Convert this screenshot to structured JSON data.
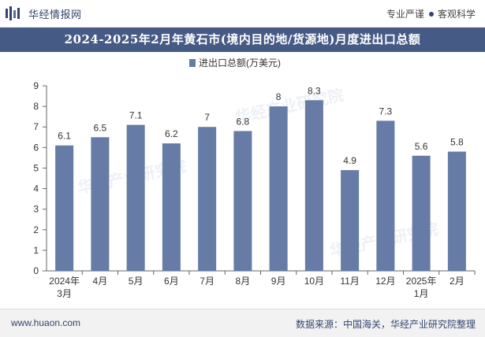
{
  "header": {
    "brand": "华经情报网",
    "motto_left": "专业严谨",
    "motto_right": "客观科学"
  },
  "title": "2024-2025年2月年黄石市(境内目的地/货源地)月度进出口总额",
  "chart_data": {
    "type": "bar",
    "title": "2024-2025年2月年黄石市(境内目的地/货源地)月度进出口总额",
    "legend": "进出口总额(万美元)",
    "categories": [
      "2024年\n3月",
      "4月",
      "5月",
      "6月",
      "7月",
      "8月",
      "9月",
      "10月",
      "11月",
      "12月",
      "2025年\n1月",
      "2月"
    ],
    "values": [
      6.1,
      6.5,
      7.1,
      6.2,
      7,
      6.8,
      8,
      8.3,
      4.9,
      7.3,
      5.6,
      5.8
    ],
    "value_labels": [
      "6.1",
      "6.5",
      "7.1",
      "6.2",
      "7",
      "6.8",
      "8",
      "8.3",
      "4.9",
      "7.3",
      "5.6",
      "5.8"
    ],
    "ylim": [
      0,
      9
    ],
    "yticks": [
      0,
      1,
      2,
      3,
      4,
      5,
      6,
      7,
      8,
      9
    ],
    "xlabel": "",
    "ylabel": "",
    "bar_color": "#667ba5",
    "grid": false,
    "legend_position": "top-center"
  },
  "watermark": "华经产业研究院",
  "footer": {
    "site": "www.huaon.com",
    "source": "数据来源：中国海关，华经产业研究院整理"
  }
}
